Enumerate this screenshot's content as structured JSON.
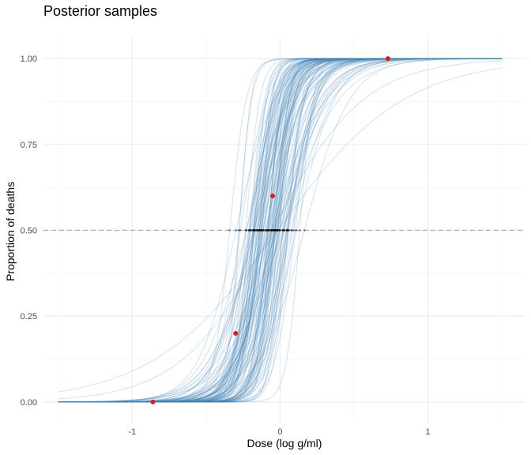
{
  "chart_data": {
    "type": "line",
    "title": "Posterior samples",
    "xlabel": "Dose (log g/ml)",
    "ylabel": "Proportion of deaths",
    "xlim": [
      -1.5,
      1.5
    ],
    "ylim": [
      0,
      1
    ],
    "x_ticks": [
      -1,
      0,
      1
    ],
    "x_tick_labels": [
      "-1",
      "0",
      "1"
    ],
    "y_ticks": [
      0,
      0.25,
      0.5,
      0.75,
      1
    ],
    "y_tick_labels": [
      "0.00",
      "0.25",
      "0.50",
      "0.75",
      "1.00"
    ],
    "grid": true,
    "reference_line": {
      "y": 0.5,
      "style": "dashed"
    },
    "curve_color": "#4682b4",
    "point_color": "#e41a1c",
    "marker_color": "#000000",
    "posterior_curves": {
      "count": 120,
      "center_mean": -0.1,
      "center_sd": 0.1,
      "slope_median": 12,
      "slope_min": 2,
      "slope_max": 30
    },
    "observed_points": [
      {
        "x": -0.86,
        "y": 0.0
      },
      {
        "x": -0.3,
        "y": 0.2
      },
      {
        "x": -0.05,
        "y": 0.6
      },
      {
        "x": 0.73,
        "y": 1.0
      }
    ],
    "ld50_range": [
      -0.37,
      0.2
    ]
  }
}
